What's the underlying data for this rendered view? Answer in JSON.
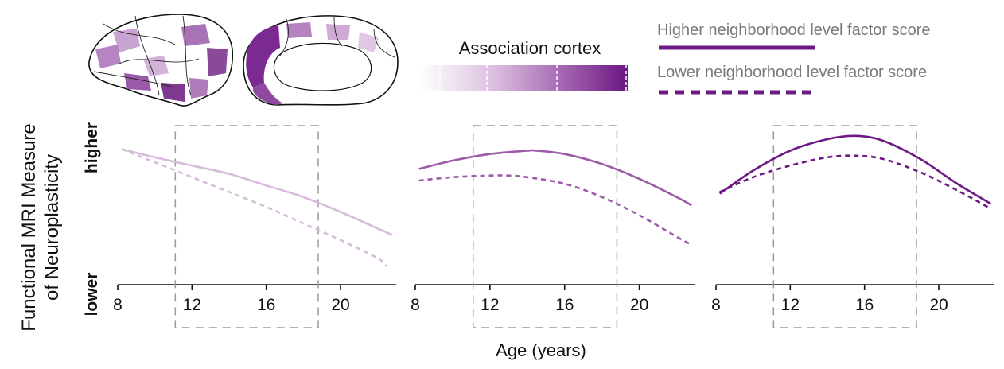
{
  "colors": {
    "light": "#d8bcdc",
    "mid": "#9c5aa8",
    "dark": "#6e1a85",
    "axis": "#111111",
    "box": "#9a9a9a",
    "legend_text": "#7a7a7a"
  },
  "gradient_title": "Association cortex",
  "legend": [
    {
      "label": "Higher neighborhood level factor score",
      "style": "solid"
    },
    {
      "label": "Lower neighborhood level factor score",
      "style": "dashed"
    }
  ],
  "y_axis": {
    "label_line1": "Functional MRI Measure",
    "label_line2": "of Neuroplasticity",
    "tick_high": "higher",
    "tick_low": "lower"
  },
  "x_axis_label": "Age (years)",
  "chart_data": [
    {
      "type": "line",
      "color": "light",
      "x_ticks": [
        "8",
        "12",
        "16",
        "20"
      ],
      "xlim": [
        8,
        23
      ],
      "ylim": [
        0,
        1
      ],
      "window": [
        11.1,
        18.8
      ],
      "series": [
        {
          "style": "solid",
          "x": [
            8.2,
            10,
            12,
            14,
            16,
            18,
            20,
            22,
            22.8
          ],
          "y": [
            0.82,
            0.77,
            0.72,
            0.67,
            0.6,
            0.53,
            0.44,
            0.34,
            0.3
          ]
        },
        {
          "style": "dashed",
          "x": [
            8.2,
            10,
            12,
            14,
            16,
            18,
            20,
            22,
            22.5
          ],
          "y": [
            0.82,
            0.74,
            0.65,
            0.56,
            0.47,
            0.37,
            0.27,
            0.16,
            0.11
          ]
        }
      ]
    },
    {
      "type": "line",
      "color": "mid",
      "x_ticks": [
        "8",
        "12",
        "16",
        "20"
      ],
      "xlim": [
        8,
        23
      ],
      "ylim": [
        0,
        1
      ],
      "window": [
        11.1,
        18.8
      ],
      "series": [
        {
          "style": "solid",
          "x": [
            8.2,
            10,
            12,
            14,
            14.5,
            16,
            18,
            20,
            22,
            22.8
          ],
          "y": [
            0.7,
            0.75,
            0.79,
            0.81,
            0.81,
            0.79,
            0.73,
            0.64,
            0.53,
            0.48
          ]
        },
        {
          "style": "dashed",
          "x": [
            8.2,
            10,
            12,
            13,
            14,
            16,
            18,
            20,
            22,
            22.8
          ],
          "y": [
            0.63,
            0.65,
            0.66,
            0.66,
            0.65,
            0.61,
            0.53,
            0.42,
            0.29,
            0.24
          ]
        }
      ]
    },
    {
      "type": "line",
      "color": "dark",
      "x_ticks": [
        "8",
        "12",
        "16",
        "20"
      ],
      "xlim": [
        8,
        23
      ],
      "ylim": [
        0,
        1
      ],
      "window": [
        11.1,
        18.8
      ],
      "series": [
        {
          "style": "solid",
          "x": [
            8.2,
            10,
            12,
            14,
            15.5,
            17,
            19,
            21,
            22.8
          ],
          "y": [
            0.55,
            0.69,
            0.81,
            0.88,
            0.9,
            0.87,
            0.76,
            0.61,
            0.49
          ]
        },
        {
          "style": "dashed",
          "x": [
            8.2,
            10,
            12,
            14,
            15.5,
            17,
            19,
            21,
            22.8
          ],
          "y": [
            0.56,
            0.65,
            0.72,
            0.77,
            0.78,
            0.76,
            0.68,
            0.57,
            0.46
          ]
        }
      ]
    }
  ]
}
